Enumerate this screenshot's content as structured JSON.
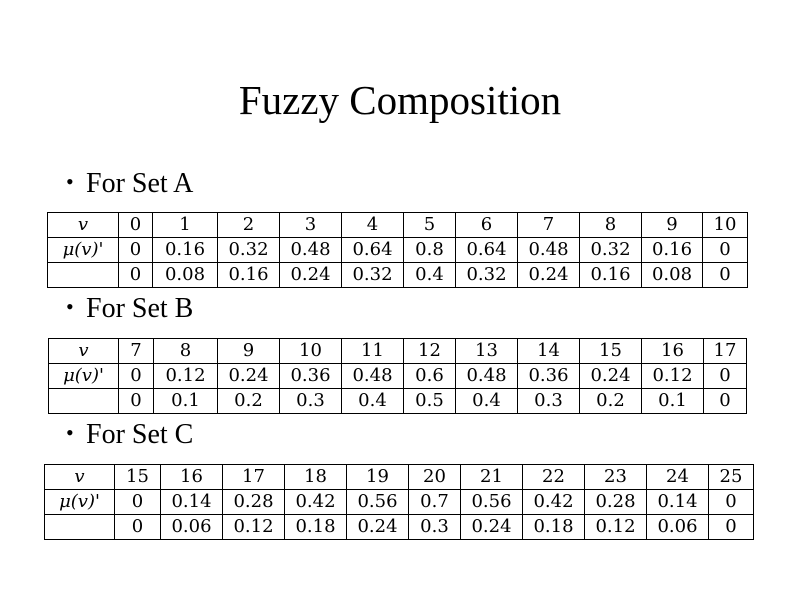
{
  "title": "Fuzzy Composition",
  "sections": [
    {
      "heading": "For Set A",
      "header_label": "v",
      "row1_label": "μ(v)'",
      "row2_label": "",
      "v": [
        "0",
        "1",
        "2",
        "3",
        "4",
        "5",
        "6",
        "7",
        "8",
        "9",
        "10"
      ],
      "row1": [
        "0",
        "0.16",
        "0.32",
        "0.48",
        "0.64",
        "0.8",
        "0.64",
        "0.48",
        "0.32",
        "0.16",
        "0"
      ],
      "row2": [
        "0",
        "0.08",
        "0.16",
        "0.24",
        "0.32",
        "0.4",
        "0.32",
        "0.24",
        "0.16",
        "0.08",
        "0"
      ]
    },
    {
      "heading": "For Set B",
      "header_label": "v",
      "row1_label": "μ(v)'",
      "row2_label": "",
      "v": [
        "7",
        "8",
        "9",
        "10",
        "11",
        "12",
        "13",
        "14",
        "15",
        "16",
        "17"
      ],
      "row1": [
        "0",
        "0.12",
        "0.24",
        "0.36",
        "0.48",
        "0.6",
        "0.48",
        "0.36",
        "0.24",
        "0.12",
        "0"
      ],
      "row2": [
        "0",
        "0.1",
        "0.2",
        "0.3",
        "0.4",
        "0.5",
        "0.4",
        "0.3",
        "0.2",
        "0.1",
        "0"
      ]
    },
    {
      "heading": "For Set C",
      "header_label": "v",
      "row1_label": "μ(v)'",
      "row2_label": "",
      "v": [
        "15",
        "16",
        "17",
        "18",
        "19",
        "20",
        "21",
        "22",
        "23",
        "24",
        "25"
      ],
      "row1": [
        "0",
        "0.14",
        "0.28",
        "0.42",
        "0.56",
        "0.7",
        "0.56",
        "0.42",
        "0.28",
        "0.14",
        "0"
      ],
      "row2": [
        "0",
        "0.06",
        "0.12",
        "0.18",
        "0.24",
        "0.3",
        "0.24",
        "0.18",
        "0.12",
        "0.06",
        "0"
      ]
    }
  ]
}
